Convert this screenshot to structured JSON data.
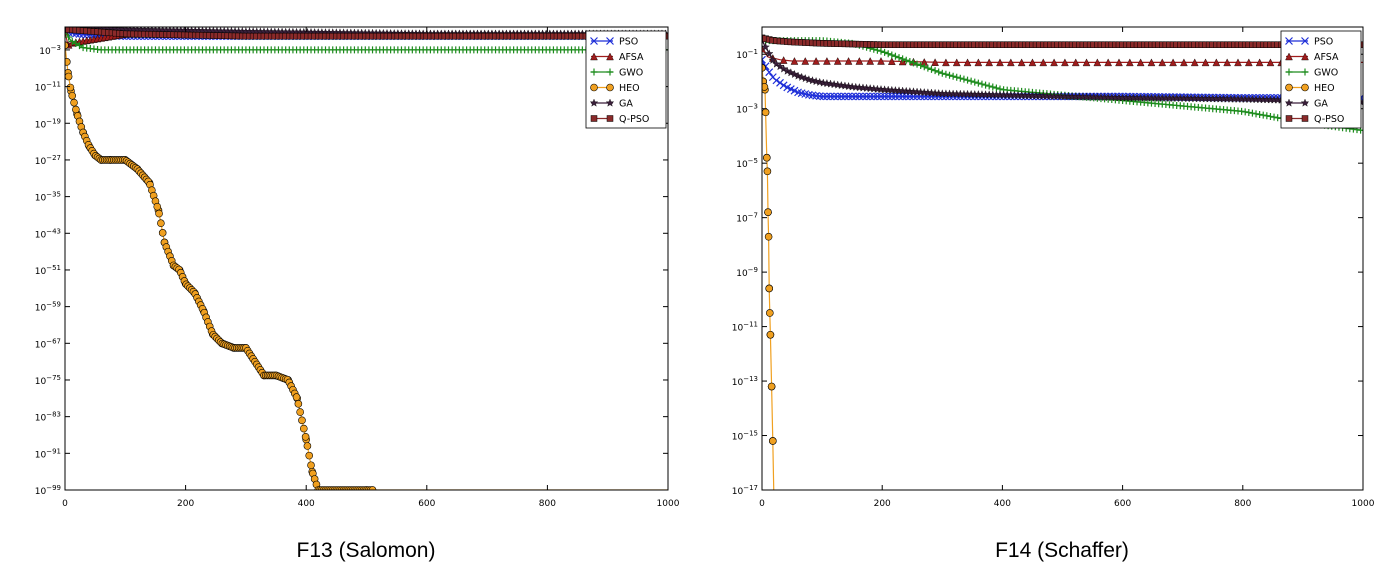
{
  "colors": {
    "PSO": "#1f2fd8",
    "AFSA": "#a01c1c",
    "GWO": "#1d8c1d",
    "HEO": "#f0a020",
    "GA": "#3a1f3a",
    "Q-PSO": "#8b2a2a"
  },
  "chart_data": [
    {
      "type": "line",
      "title": "F13 (Salomon)",
      "xlabel": "",
      "ylabel": "",
      "yscale": "log",
      "xlim": [
        0,
        1000
      ],
      "ylim_exp": [
        -99,
        2
      ],
      "x_ticks": [
        "0",
        "200",
        "400",
        "600",
        "800",
        "1000"
      ],
      "y_tick_exps": [
        "-3",
        "-11",
        "-19",
        "-27",
        "-35",
        "-43",
        "-51",
        "-59",
        "-67",
        "-75",
        "-83",
        "-91",
        "-99"
      ],
      "legend_position": "top-right",
      "series": [
        {
          "name": "PSO",
          "marker": "x",
          "x": [
            0,
            20,
            50,
            100,
            200,
            400,
            600,
            800,
            1000
          ],
          "y_exp": [
            1,
            0.5,
            0.2,
            0,
            0,
            0,
            0,
            0,
            0
          ]
        },
        {
          "name": "AFSA",
          "marker": "triangle",
          "x": [
            0,
            5,
            10,
            100,
            1000
          ],
          "y_exp": [
            1,
            -2,
            -1.5,
            0.5,
            0.5
          ]
        },
        {
          "name": "GWO",
          "marker": "plus",
          "x": [
            0,
            10,
            30,
            60,
            100,
            300,
            600,
            1000
          ],
          "y_exp": [
            1,
            -1,
            -2.5,
            -3,
            -3,
            -3,
            -3,
            -3
          ]
        },
        {
          "name": "HEO",
          "marker": "circle",
          "x": [
            0,
            5,
            10,
            20,
            30,
            40,
            50,
            60,
            75,
            100,
            120,
            140,
            155,
            165,
            180,
            190,
            200,
            215,
            230,
            245,
            260,
            280,
            300,
            330,
            350,
            370,
            385,
            400,
            410,
            420,
            500,
            510,
            1000
          ],
          "y_exp": [
            -2,
            -8,
            -12,
            -17,
            -21,
            -24,
            -26,
            -27,
            -27,
            -27,
            -29,
            -32,
            -38,
            -45,
            -50,
            -51,
            -54,
            -56,
            -60,
            -65,
            -67,
            -68,
            -68,
            -74,
            -74,
            -75,
            -79,
            -88,
            -95,
            -99,
            -99,
            -99,
            -99
          ]
        },
        {
          "name": "GA",
          "marker": "star",
          "x": [
            0,
            100,
            300,
            600,
            1000
          ],
          "y_exp": [
            2,
            1.5,
            1,
            0.5,
            0.5
          ]
        },
        {
          "name": "Q-PSO",
          "marker": "square",
          "x": [
            0,
            100,
            300,
            600,
            1000
          ],
          "y_exp": [
            1.5,
            0.5,
            0,
            0,
            0
          ]
        }
      ]
    },
    {
      "type": "line",
      "title": "F14 (Schaffer)",
      "xlabel": "",
      "ylabel": "",
      "yscale": "log",
      "xlim": [
        0,
        1000
      ],
      "ylim_exp": [
        -17,
        0
      ],
      "x_ticks": [
        "0",
        "200",
        "400",
        "600",
        "800",
        "1000"
      ],
      "y_tick_exps": [
        "-1",
        "-3",
        "-5",
        "-7",
        "-9",
        "-11",
        "-13",
        "-15",
        "-17"
      ],
      "legend_position": "top-right",
      "series": [
        {
          "name": "PSO",
          "marker": "x",
          "x": [
            0,
            10,
            20,
            40,
            60,
            80,
            100,
            150,
            200,
            400,
            600,
            800,
            1000
          ],
          "y_exp": [
            -1.2,
            -1.6,
            -1.9,
            -2.2,
            -2.4,
            -2.5,
            -2.55,
            -2.55,
            -2.55,
            -2.55,
            -2.55,
            -2.6,
            -2.6
          ]
        },
        {
          "name": "AFSA",
          "marker": "triangle",
          "x": [
            0,
            10,
            30,
            50,
            100,
            200,
            300,
            400,
            600,
            800,
            1000
          ],
          "y_exp": [
            -0.8,
            -1.1,
            -1.2,
            -1.25,
            -1.25,
            -1.25,
            -1.3,
            -1.3,
            -1.3,
            -1.3,
            -1.3
          ]
        },
        {
          "name": "GWO",
          "marker": "plus",
          "x": [
            0,
            50,
            100,
            150,
            200,
            250,
            300,
            350,
            400,
            500,
            600,
            700,
            800,
            900,
            1000
          ],
          "y_exp": [
            -0.5,
            -0.5,
            -0.5,
            -0.6,
            -0.9,
            -1.3,
            -1.7,
            -2.0,
            -2.3,
            -2.5,
            -2.7,
            -2.9,
            -3.1,
            -3.5,
            -3.8
          ]
        },
        {
          "name": "HEO",
          "marker": "circle",
          "x": [
            0,
            2,
            5,
            8,
            9,
            10,
            11,
            12,
            13,
            14,
            16,
            18,
            20,
            1000
          ],
          "y_exp": [
            -1.5,
            -2,
            -2.3,
            -4.8,
            -5.3,
            -6.8,
            -7.7,
            -9.6,
            -10.5,
            -11.3,
            -13.2,
            -15.2,
            -17.5,
            -17.5
          ]
        },
        {
          "name": "GA",
          "marker": "star",
          "x": [
            0,
            10,
            20,
            40,
            60,
            80,
            100,
            150,
            200,
            300,
            400,
            500,
            600,
            700,
            800,
            900,
            1000
          ],
          "y_exp": [
            -0.5,
            -0.9,
            -1.3,
            -1.6,
            -1.8,
            -1.95,
            -2.05,
            -2.2,
            -2.3,
            -2.45,
            -2.5,
            -2.55,
            -2.6,
            -2.62,
            -2.65,
            -2.7,
            -2.75
          ]
        },
        {
          "name": "Q-PSO",
          "marker": "square",
          "x": [
            0,
            20,
            50,
            100,
            200,
            400,
            600,
            800,
            1000
          ],
          "y_exp": [
            -0.4,
            -0.5,
            -0.55,
            -0.6,
            -0.65,
            -0.65,
            -0.65,
            -0.65,
            -0.65
          ]
        }
      ]
    }
  ]
}
